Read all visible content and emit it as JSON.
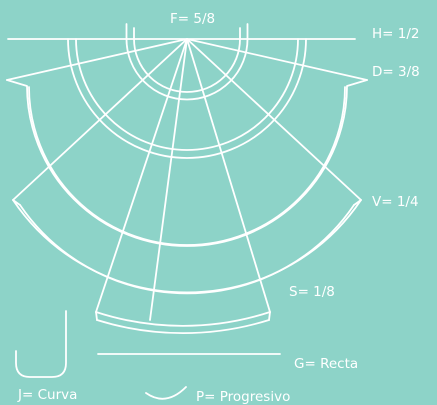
{
  "background_color": "#8dd3c8",
  "line_color": "#ffffff",
  "labels": {
    "F": "F= 5/8",
    "H": "H= 1/2",
    "D": "D= 3/8",
    "V": "V= 1/4",
    "S": "S= 1/8",
    "G": "G= Recta",
    "J": "J= Curva",
    "P": "P= Progresivo"
  }
}
